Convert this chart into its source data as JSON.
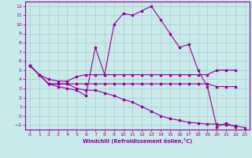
{
  "xlabel": "Windchill (Refroidissement éolien,°C)",
  "background_color": "#c8eaea",
  "line_color": "#990099",
  "grid_color": "#b0c8c8",
  "xlim": [
    -0.5,
    23.5
  ],
  "ylim": [
    -1.5,
    12.5
  ],
  "xticks": [
    0,
    1,
    2,
    3,
    4,
    5,
    6,
    7,
    8,
    9,
    10,
    11,
    12,
    13,
    14,
    15,
    16,
    17,
    18,
    19,
    20,
    21,
    22,
    23
  ],
  "yticks": [
    -1,
    0,
    1,
    2,
    3,
    4,
    5,
    6,
    7,
    8,
    9,
    10,
    11,
    12
  ],
  "line1_x": [
    0,
    1,
    2,
    3,
    4,
    5,
    6,
    7,
    8,
    9,
    10,
    11,
    12,
    13,
    14,
    15,
    16,
    17,
    18,
    19,
    20,
    21,
    22
  ],
  "line1_y": [
    5.5,
    4.5,
    3.5,
    3.2,
    3.0,
    2.8,
    2.2,
    7.5,
    4.5,
    10.0,
    11.2,
    11.0,
    11.5,
    12.0,
    10.5,
    9.0,
    7.5,
    7.8,
    5.0,
    3.2,
    -1.2,
    -0.8,
    -1.2
  ],
  "line2_x": [
    0,
    1,
    2,
    3,
    4,
    5,
    6,
    7,
    8,
    9,
    10,
    11,
    12,
    13,
    14,
    15,
    16,
    17,
    18,
    19,
    20,
    21,
    22
  ],
  "line2_y": [
    5.5,
    4.5,
    4.0,
    3.8,
    3.8,
    4.3,
    4.5,
    4.5,
    4.5,
    4.5,
    4.5,
    4.5,
    4.5,
    4.5,
    4.5,
    4.5,
    4.5,
    4.5,
    4.5,
    4.5,
    5.0,
    5.0,
    5.0
  ],
  "line3_x": [
    0,
    1,
    2,
    3,
    4,
    5,
    6,
    7,
    8,
    9,
    10,
    11,
    12,
    13,
    14,
    15,
    16,
    17,
    18,
    19,
    20,
    21,
    22
  ],
  "line3_y": [
    5.5,
    4.5,
    3.5,
    3.5,
    3.5,
    3.5,
    3.5,
    3.5,
    3.5,
    3.5,
    3.5,
    3.5,
    3.5,
    3.5,
    3.5,
    3.5,
    3.5,
    3.5,
    3.5,
    3.5,
    3.2,
    3.2,
    3.2
  ],
  "line4_x": [
    0,
    1,
    2,
    3,
    4,
    5,
    6,
    7,
    8,
    9,
    10,
    11,
    12,
    13,
    14,
    15,
    16,
    17,
    18,
    19,
    20,
    21,
    22,
    23
  ],
  "line4_y": [
    5.5,
    4.5,
    3.5,
    3.5,
    3.5,
    3.0,
    2.8,
    2.8,
    2.5,
    2.2,
    1.8,
    1.5,
    1.0,
    0.5,
    0.0,
    -0.3,
    -0.5,
    -0.7,
    -0.8,
    -0.9,
    -0.9,
    -1.0,
    -1.1,
    -1.3
  ]
}
